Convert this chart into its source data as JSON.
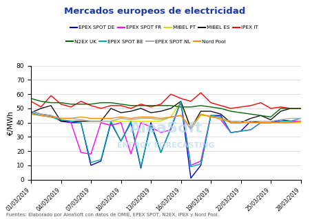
{
  "title": "Mercados europeos de electricidad",
  "ylabel": "€/MWh",
  "footnote": "Fuentes: Elaborado por AleaSoft con datos de OMIE, EPEX SPOT, N2EX, IPEX y Nord Pool.",
  "xlim": [
    0,
    27
  ],
  "ylim": [
    0,
    80
  ],
  "yticks": [
    0,
    10,
    20,
    30,
    40,
    50,
    60,
    70,
    80
  ],
  "xtick_labels": [
    "01/03/2019",
    "04/03/2019",
    "07/03/2019",
    "10/03/2019",
    "13/03/2019",
    "16/03/2019",
    "19/03/2019",
    "22/03/2019",
    "25/03/2019",
    "28/03/2019"
  ],
  "xtick_positions": [
    0,
    3,
    6,
    9,
    12,
    15,
    18,
    21,
    24,
    27
  ],
  "series": [
    {
      "name": "EPEX SPOT DE",
      "color": "#0000CC",
      "values": [
        48,
        46,
        45,
        41,
        40,
        40,
        10,
        13,
        40,
        27,
        40,
        8,
        40,
        19,
        36,
        55,
        1,
        10,
        45,
        45,
        33,
        34,
        41,
        40,
        40,
        42,
        41,
        41
      ]
    },
    {
      "name": "EPEX SPOT FR",
      "color": "#FF00FF",
      "values": [
        46,
        45,
        44,
        42,
        40,
        19,
        18,
        40,
        38,
        40,
        18,
        40,
        37,
        33,
        35,
        55,
        10,
        13,
        45,
        42,
        33,
        34,
        35,
        40,
        40,
        41,
        41,
        41
      ]
    },
    {
      "name": "MIBEL PT",
      "color": "#DDDD00",
      "values": [
        46,
        45,
        44,
        42,
        41,
        41,
        41,
        41,
        41,
        41,
        41,
        41,
        41,
        41,
        44,
        55,
        36,
        45,
        45,
        42,
        41,
        40,
        40,
        40,
        40,
        40,
        40,
        40
      ]
    },
    {
      "name": "MIBEL ES",
      "color": "#111111",
      "values": [
        47,
        50,
        52,
        41,
        41,
        41,
        41,
        41,
        50,
        47,
        48,
        50,
        47,
        48,
        50,
        55,
        36,
        48,
        48,
        46,
        40,
        40,
        43,
        45,
        42,
        48,
        50,
        50
      ]
    },
    {
      "name": "IPEX IT",
      "color": "#FF0000",
      "values": [
        55,
        51,
        59,
        53,
        51,
        55,
        52,
        50,
        52,
        52,
        50,
        53,
        51,
        53,
        60,
        57,
        55,
        61,
        54,
        52,
        50,
        51,
        52,
        54,
        50,
        51,
        50,
        50
      ]
    },
    {
      "name": "N2EX UK",
      "color": "#006600",
      "values": [
        57,
        55,
        54,
        54,
        53,
        53,
        53,
        54,
        54,
        53,
        52,
        52,
        52,
        52,
        52,
        51,
        51,
        52,
        51,
        50,
        48,
        47,
        46,
        45,
        44,
        50,
        50,
        50
      ]
    },
    {
      "name": "EPEX SPOT BE",
      "color": "#00AAAA",
      "values": [
        47,
        45,
        44,
        42,
        41,
        40,
        12,
        14,
        41,
        27,
        41,
        9,
        38,
        19,
        36,
        55,
        9,
        11,
        45,
        44,
        33,
        34,
        35,
        40,
        40,
        41,
        41,
        43
      ]
    },
    {
      "name": "EPEX SPOT NL",
      "color": "#AAAAAA",
      "values": [
        48,
        46,
        45,
        43,
        43,
        42,
        41,
        41,
        41,
        43,
        42,
        43,
        43,
        42,
        44,
        45,
        35,
        46,
        44,
        43,
        41,
        41,
        41,
        41,
        41,
        42,
        43,
        43
      ]
    },
    {
      "name": "Nord Pool",
      "color": "#FF8C00",
      "values": [
        46,
        45,
        44,
        43,
        43,
        44,
        43,
        43,
        43,
        44,
        43,
        44,
        44,
        43,
        44,
        45,
        37,
        46,
        44,
        43,
        40,
        40,
        40,
        40,
        40,
        40,
        40,
        41
      ]
    }
  ]
}
